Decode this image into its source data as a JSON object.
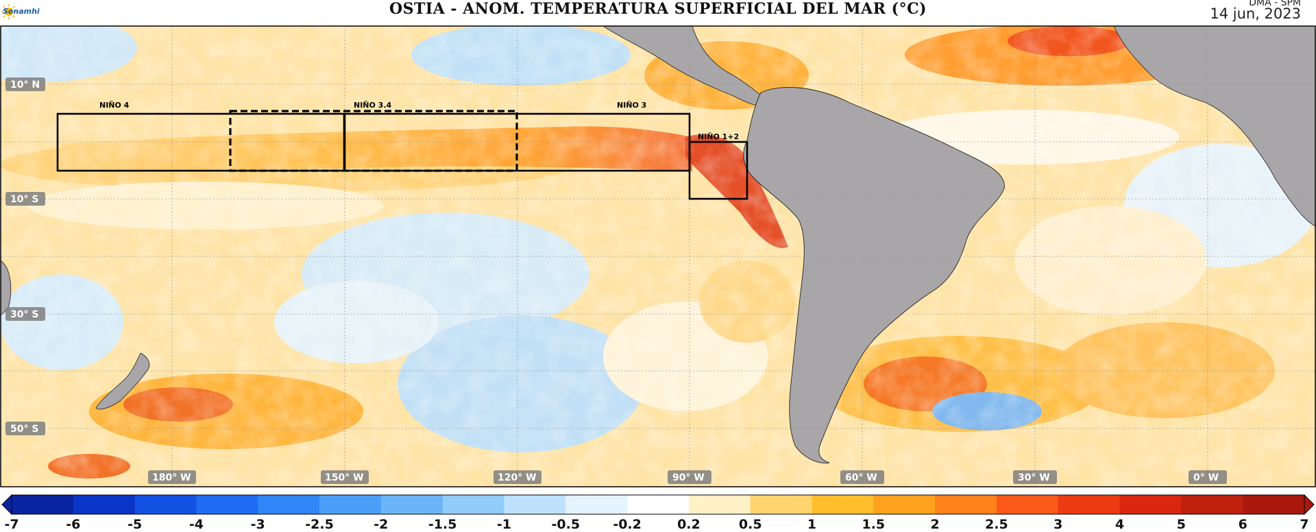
{
  "title": "OSTIA - ANOM. TEMPERATURA SUPERFICIAL DEL MAR (°C)",
  "credit": "DMA - SPM",
  "date": "14 jun, 2023",
  "logo_text": "Senamhi",
  "lat_labels": [
    "10° N",
    "10° S",
    "30° S",
    "50° S"
  ],
  "lon_labels": [
    "180° W",
    "150° W",
    "120° W",
    "90° W",
    "60° W",
    "30° W",
    "0° W"
  ],
  "regions": [
    {
      "name": "NIÑO 4",
      "style": "solid"
    },
    {
      "name": "NIÑO 3.4",
      "style": "dashed"
    },
    {
      "name": "NIÑO 3",
      "style": "solid"
    },
    {
      "name": "NIÑO 1+2",
      "style": "solid"
    }
  ],
  "colorbar": {
    "ticks": [
      "-7",
      "-6",
      "-5",
      "-4",
      "-3",
      "-2.5",
      "-2",
      "-1.5",
      "-1",
      "-0.5",
      "-0.2",
      "0.2",
      "0.5",
      "1",
      "1.5",
      "2",
      "2.5",
      "3",
      "4",
      "5",
      "6",
      "7"
    ],
    "colors": [
      "#08249e",
      "#0a36c8",
      "#1452e6",
      "#1f6cf2",
      "#2f86f4",
      "#4a9ef6",
      "#6cb4f8",
      "#92ccfa",
      "#bfe2fc",
      "#e4f3fd",
      "#ffffff",
      "#fff1c6",
      "#ffd470",
      "#ffbe2c",
      "#ffa21e",
      "#ff821a",
      "#fb5a18",
      "#ec3a12",
      "#d8260f",
      "#c0200e",
      "#a8180c"
    ]
  }
}
